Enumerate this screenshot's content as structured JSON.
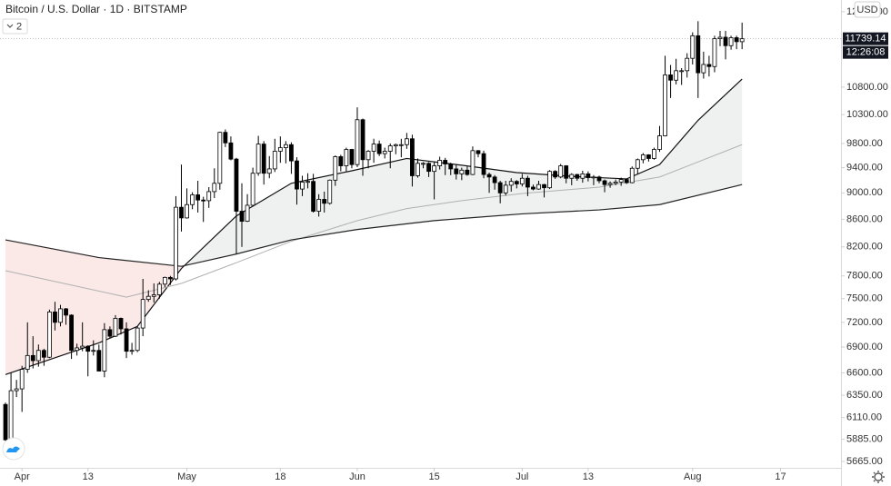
{
  "chart_data": {
    "type": "candlestick",
    "title": "Bitcoin / U.S. Dollar · 1D · BITSTAMP",
    "indicator_count": 2,
    "currency": "USD",
    "last_price": 11739.14,
    "countdown": "12:26:08",
    "log_scale": true,
    "up_color": "#ffffff",
    "down_color": "#000000",
    "fill_above_color": "#eef1f0",
    "fill_below_color": "#fbe9e8",
    "xlim": [
      "03-28",
      "08-28"
    ],
    "xticks": [
      {
        "value": "04-01",
        "label": "Apr"
      },
      {
        "value": "04-13",
        "label": "13"
      },
      {
        "value": "05-01",
        "label": "May"
      },
      {
        "value": "05-18",
        "label": "18"
      },
      {
        "value": "06-01",
        "label": "Jun"
      },
      {
        "value": "06-15",
        "label": "15"
      },
      {
        "value": "07-01",
        "label": "Jul"
      },
      {
        "value": "07-13",
        "label": "13"
      },
      {
        "value": "08-01",
        "label": "Aug"
      },
      {
        "value": "08-17",
        "label": "17"
      }
    ],
    "ylim": [
      5603,
      12550
    ],
    "yticks": [
      {
        "value": 5665,
        "label": "5665.00"
      },
      {
        "value": 5885,
        "label": "5885.00"
      },
      {
        "value": 6110,
        "label": "6110.00"
      },
      {
        "value": 6350,
        "label": "6350.00"
      },
      {
        "value": 6600,
        "label": "6600.00"
      },
      {
        "value": 6900,
        "label": "6900.00"
      },
      {
        "value": 7200,
        "label": "7200.00"
      },
      {
        "value": 7500,
        "label": "7500.00"
      },
      {
        "value": 7800,
        "label": "7800.00"
      },
      {
        "value": 8200,
        "label": "8200.00"
      },
      {
        "value": 8600,
        "label": "8600.00"
      },
      {
        "value": 9000,
        "label": "9000.00"
      },
      {
        "value": 9400,
        "label": "9400.00"
      },
      {
        "value": 9800,
        "label": "9800.00"
      },
      {
        "value": 10300,
        "label": "10300.00"
      },
      {
        "value": 10800,
        "label": "10800.00"
      },
      {
        "value": 12300,
        "label": "12300.00"
      }
    ],
    "x": [
      "03-29",
      "03-30",
      "03-31",
      "04-01",
      "04-02",
      "04-03",
      "04-04",
      "04-05",
      "04-06",
      "04-07",
      "04-08",
      "04-09",
      "04-10",
      "04-11",
      "04-12",
      "04-13",
      "04-14",
      "04-15",
      "04-16",
      "04-17",
      "04-18",
      "04-19",
      "04-20",
      "04-21",
      "04-22",
      "04-23",
      "04-24",
      "04-25",
      "04-26",
      "04-27",
      "04-28",
      "04-29",
      "04-30",
      "05-01",
      "05-02",
      "05-03",
      "05-04",
      "05-05",
      "05-06",
      "05-07",
      "05-08",
      "05-09",
      "05-10",
      "05-11",
      "05-12",
      "05-13",
      "05-14",
      "05-15",
      "05-16",
      "05-17",
      "05-18",
      "05-19",
      "05-20",
      "05-21",
      "05-22",
      "05-23",
      "05-24",
      "05-25",
      "05-26",
      "05-27",
      "05-28",
      "05-29",
      "05-30",
      "05-31",
      "06-01",
      "06-02",
      "06-03",
      "06-04",
      "06-05",
      "06-06",
      "06-07",
      "06-08",
      "06-09",
      "06-10",
      "06-11",
      "06-12",
      "06-13",
      "06-14",
      "06-15",
      "06-16",
      "06-17",
      "06-18",
      "06-19",
      "06-20",
      "06-21",
      "06-22",
      "06-23",
      "06-24",
      "06-25",
      "06-26",
      "06-27",
      "06-28",
      "06-29",
      "06-30",
      "07-01",
      "07-02",
      "07-03",
      "07-04",
      "07-05",
      "07-06",
      "07-07",
      "07-08",
      "07-09",
      "07-10",
      "07-11",
      "07-12",
      "07-13",
      "07-14",
      "07-15",
      "07-16",
      "07-17",
      "07-18",
      "07-19",
      "07-20",
      "07-21",
      "07-22",
      "07-23",
      "07-24",
      "07-25",
      "07-26",
      "07-27",
      "07-28",
      "07-29",
      "07-30",
      "07-31",
      "08-01",
      "08-02",
      "08-03",
      "08-04",
      "08-05",
      "08-06",
      "08-07",
      "08-08",
      "08-09",
      "08-10"
    ],
    "ohlc": [
      [
        6250,
        6270,
        5870,
        5880
      ],
      [
        5880,
        6600,
        5860,
        6400
      ],
      [
        6400,
        6520,
        6330,
        6420
      ],
      [
        6420,
        6680,
        6170,
        6640
      ],
      [
        6640,
        7200,
        6600,
        6800
      ],
      [
        6800,
        7030,
        6650,
        6740
      ],
      [
        6740,
        6930,
        6670,
        6860
      ],
      [
        6860,
        6880,
        6680,
        6780
      ],
      [
        6780,
        7360,
        6770,
        7330
      ],
      [
        7330,
        7460,
        7100,
        7200
      ],
      [
        7200,
        7420,
        7150,
        7370
      ],
      [
        7370,
        7380,
        7170,
        7290
      ],
      [
        7290,
        7300,
        6760,
        6860
      ],
      [
        6860,
        6940,
        6800,
        6890
      ],
      [
        6890,
        7200,
        6850,
        6910
      ],
      [
        6910,
        6920,
        6560,
        6850
      ],
      [
        6850,
        6980,
        6800,
        6860
      ],
      [
        6860,
        6930,
        6620,
        6620
      ],
      [
        6620,
        7190,
        6550,
        7110
      ],
      [
        7110,
        7150,
        7010,
        7030
      ],
      [
        7030,
        7290,
        7020,
        7250
      ],
      [
        7250,
        7260,
        7050,
        7120
      ],
      [
        7120,
        7200,
        6770,
        6850
      ],
      [
        6850,
        6950,
        6810,
        6860
      ],
      [
        6860,
        7150,
        6840,
        7130
      ],
      [
        7130,
        7760,
        7030,
        7490
      ],
      [
        7490,
        7610,
        7460,
        7530
      ],
      [
        7530,
        7700,
        7450,
        7550
      ],
      [
        7550,
        7720,
        7500,
        7690
      ],
      [
        7690,
        7790,
        7650,
        7780
      ],
      [
        7780,
        7800,
        7680,
        7760
      ],
      [
        7760,
        8950,
        7740,
        8780
      ],
      [
        8780,
        9450,
        8420,
        8620
      ],
      [
        8620,
        9070,
        8610,
        8820
      ],
      [
        8820,
        9010,
        8750,
        8970
      ],
      [
        8970,
        9190,
        8700,
        8890
      ],
      [
        8890,
        8940,
        8560,
        8880
      ],
      [
        8880,
        9090,
        8770,
        9020
      ],
      [
        9020,
        9390,
        8920,
        9150
      ],
      [
        9150,
        10000,
        9050,
        9990
      ],
      [
        9990,
        10040,
        9740,
        9810
      ],
      [
        9810,
        9920,
        9520,
        9540
      ],
      [
        9540,
        9560,
        8100,
        8720
      ],
      [
        8720,
        9150,
        8200,
        8570
      ],
      [
        8570,
        8980,
        8560,
        8810
      ],
      [
        8810,
        9400,
        8790,
        9310
      ],
      [
        9310,
        9930,
        9270,
        9790
      ],
      [
        9790,
        9840,
        9130,
        9310
      ],
      [
        9310,
        9590,
        9230,
        9380
      ],
      [
        9380,
        9880,
        9330,
        9670
      ],
      [
        9670,
        9920,
        9480,
        9730
      ],
      [
        9730,
        9840,
        9470,
        9780
      ],
      [
        9780,
        9820,
        9300,
        9510
      ],
      [
        9510,
        9570,
        8820,
        9060
      ],
      [
        9060,
        9270,
        8950,
        9170
      ],
      [
        9170,
        9310,
        9070,
        9180
      ],
      [
        9180,
        9300,
        8700,
        8720
      ],
      [
        8720,
        8980,
        8640,
        8900
      ],
      [
        8900,
        9020,
        8700,
        8840
      ],
      [
        8840,
        9210,
        8820,
        9200
      ],
      [
        9200,
        9600,
        9110,
        9580
      ],
      [
        9580,
        9610,
        9340,
        9430
      ],
      [
        9430,
        9730,
        9340,
        9700
      ],
      [
        9700,
        9710,
        9390,
        9450
      ],
      [
        9450,
        10430,
        9410,
        10210
      ],
      [
        10210,
        10230,
        9270,
        9530
      ],
      [
        9530,
        9690,
        9390,
        9670
      ],
      [
        9670,
        9880,
        9480,
        9790
      ],
      [
        9790,
        9850,
        9590,
        9630
      ],
      [
        9630,
        9730,
        9550,
        9670
      ],
      [
        9670,
        9800,
        9390,
        9760
      ],
      [
        9760,
        9800,
        9620,
        9780
      ],
      [
        9780,
        9880,
        9570,
        9780
      ],
      [
        9780,
        9980,
        9710,
        9880
      ],
      [
        9880,
        9950,
        9100,
        9270
      ],
      [
        9270,
        9550,
        9240,
        9470
      ],
      [
        9470,
        9490,
        9390,
        9470
      ],
      [
        9470,
        9490,
        9250,
        9340
      ],
      [
        9340,
        9490,
        8900,
        9430
      ],
      [
        9430,
        9580,
        9370,
        9520
      ],
      [
        9520,
        9560,
        9280,
        9460
      ],
      [
        9460,
        9480,
        9280,
        9380
      ],
      [
        9380,
        9450,
        9210,
        9300
      ],
      [
        9300,
        9400,
        9200,
        9360
      ],
      [
        9360,
        9420,
        9270,
        9290
      ],
      [
        9290,
        9750,
        9280,
        9680
      ],
      [
        9680,
        9690,
        9570,
        9630
      ],
      [
        9630,
        9680,
        9230,
        9290
      ],
      [
        9290,
        9320,
        9000,
        9250
      ],
      [
        9250,
        9280,
        9050,
        9160
      ],
      [
        9160,
        9190,
        8840,
        9000
      ],
      [
        9000,
        9190,
        8960,
        9120
      ],
      [
        9120,
        9230,
        9020,
        9180
      ],
      [
        9180,
        9200,
        9070,
        9140
      ],
      [
        9140,
        9300,
        9100,
        9230
      ],
      [
        9230,
        9270,
        8950,
        9090
      ],
      [
        9090,
        9130,
        9040,
        9060
      ],
      [
        9060,
        9190,
        9050,
        9130
      ],
      [
        9130,
        9140,
        8930,
        9080
      ],
      [
        9080,
        9360,
        9060,
        9340
      ],
      [
        9340,
        9360,
        9220,
        9250
      ],
      [
        9250,
        9460,
        9230,
        9430
      ],
      [
        9430,
        9440,
        9150,
        9230
      ],
      [
        9230,
        9310,
        9120,
        9290
      ],
      [
        9290,
        9300,
        9190,
        9230
      ],
      [
        9230,
        9350,
        9160,
        9300
      ],
      [
        9300,
        9340,
        9180,
        9240
      ],
      [
        9240,
        9280,
        9120,
        9250
      ],
      [
        9250,
        9270,
        9150,
        9190
      ],
      [
        9190,
        9210,
        9010,
        9130
      ],
      [
        9130,
        9180,
        9080,
        9150
      ],
      [
        9150,
        9210,
        9120,
        9170
      ],
      [
        9170,
        9240,
        9110,
        9210
      ],
      [
        9210,
        9220,
        9140,
        9160
      ],
      [
        9160,
        9420,
        9150,
        9390
      ],
      [
        9390,
        9550,
        9300,
        9530
      ],
      [
        9530,
        9640,
        9470,
        9610
      ],
      [
        9610,
        9620,
        9500,
        9550
      ],
      [
        9550,
        9730,
        9530,
        9700
      ],
      [
        9700,
        10100,
        9660,
        9930
      ],
      [
        9930,
        11400,
        9920,
        11030
      ],
      [
        11030,
        11220,
        10600,
        10930
      ],
      [
        10930,
        11340,
        10850,
        11110
      ],
      [
        11110,
        11160,
        10840,
        11110
      ],
      [
        11110,
        11450,
        10980,
        11350
      ],
      [
        11350,
        11870,
        11230,
        11800
      ],
      [
        11800,
        12100,
        10600,
        11070
      ],
      [
        11070,
        11480,
        10960,
        11230
      ],
      [
        11230,
        11400,
        11000,
        11190
      ],
      [
        11190,
        11800,
        11080,
        11740
      ],
      [
        11740,
        11900,
        11590,
        11770
      ],
      [
        11770,
        11900,
        11330,
        11600
      ],
      [
        11600,
        11800,
        11520,
        11760
      ],
      [
        11760,
        11800,
        11530,
        11680
      ],
      [
        11680,
        12070,
        11530,
        11739.14
      ]
    ],
    "lines": [
      {
        "color": "#111111",
        "x": [
          "03-29",
          "04-15",
          "04-22",
          "04-30",
          "05-10",
          "05-20",
          "05-31",
          "06-10",
          "06-20",
          "06-30",
          "07-10",
          "07-20",
          "07-26",
          "08-02",
          "08-10"
        ],
        "values": [
          6580,
          6950,
          7150,
          7900,
          8650,
          9150,
          9350,
          9550,
          9440,
          9320,
          9260,
          9220,
          9450,
          10200,
          10950
        ]
      },
      {
        "color": "#b0b0b0",
        "x": [
          "03-29",
          "04-20",
          "04-30",
          "05-10",
          "05-20",
          "06-01",
          "06-10",
          "06-20",
          "07-01",
          "07-15",
          "07-26",
          "08-10"
        ],
        "values": [
          7870,
          7520,
          7700,
          7980,
          8280,
          8580,
          8760,
          8880,
          8990,
          9090,
          9250,
          9780
        ]
      },
      {
        "color": "#222222",
        "x": [
          "03-29",
          "04-15",
          "04-30",
          "05-10",
          "05-20",
          "06-01",
          "06-15",
          "07-01",
          "07-15",
          "07-26",
          "08-10"
        ],
        "values": [
          8300,
          8050,
          7930,
          8100,
          8300,
          8450,
          8580,
          8680,
          8740,
          8820,
          9130
        ]
      }
    ]
  }
}
